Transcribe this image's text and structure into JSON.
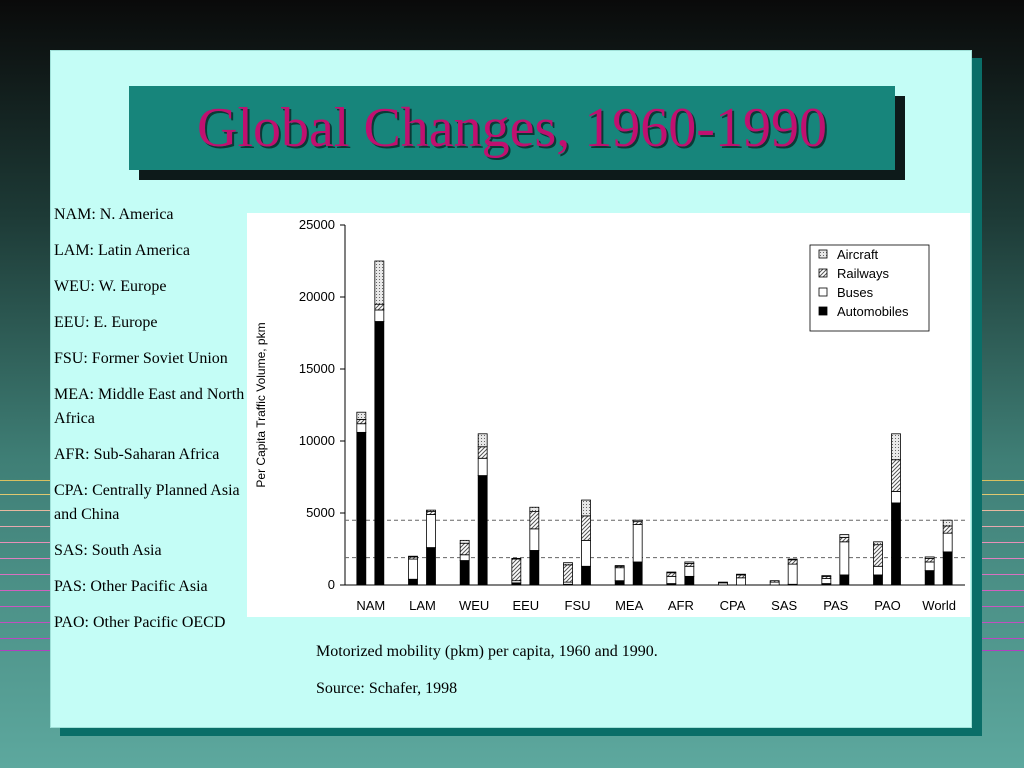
{
  "slide": {
    "title": "Global Changes, 1960-1990"
  },
  "region_legend": [
    "NAM: N. America",
    "LAM: Latin America",
    "WEU: W. Europe",
    "EEU: E. Europe",
    "FSU: Former Soviet Union",
    "MEA: Middle East and North Africa",
    "AFR: Sub-Saharan Africa",
    "CPA: Centrally Planned Asia and China",
    "SAS: South Asia",
    "PAS: Other Pacific Asia",
    "PAO: Other Pacific OECD"
  ],
  "caption": {
    "line1": "Motorized mobility (pkm) per capita, 1960 and 1990.",
    "line2": "Source:  Schafer, 1998"
  },
  "colors": {
    "accent_title_bg": "#17857b",
    "title_text": "#c01070",
    "slide_bg": "#c4fdf6"
  },
  "chart_data": {
    "type": "bar",
    "stacked": true,
    "ylabel": "Per Capita Traffic Volume, pkm",
    "ylim": [
      0,
      25000
    ],
    "yticks": [
      0,
      5000,
      10000,
      15000,
      20000,
      25000
    ],
    "reference_lines": [
      1900,
      4500
    ],
    "categories": [
      "NAM",
      "LAM",
      "WEU",
      "EEU",
      "FSU",
      "MEA",
      "AFR",
      "CPA",
      "SAS",
      "PAS",
      "PAO",
      "World"
    ],
    "years": [
      "1960",
      "1990"
    ],
    "series": [
      {
        "name": "Automobiles",
        "values": {
          "1960": [
            10600,
            400,
            1700,
            150,
            50,
            300,
            100,
            0,
            0,
            100,
            700,
            1000
          ],
          "1990": [
            18300,
            2600,
            7600,
            2400,
            1300,
            1600,
            600,
            0,
            50,
            700,
            5700,
            2300
          ]
        }
      },
      {
        "name": "Buses",
        "values": {
          "1960": [
            600,
            1400,
            400,
            150,
            150,
            900,
            500,
            150,
            200,
            350,
            600,
            600
          ],
          "1990": [
            800,
            2300,
            1200,
            1500,
            1800,
            2600,
            700,
            500,
            1400,
            2300,
            800,
            1300
          ]
        }
      },
      {
        "name": "Railways",
        "values": {
          "1960": [
            300,
            150,
            800,
            1500,
            1200,
            100,
            250,
            50,
            100,
            150,
            1500,
            250
          ],
          "1990": [
            400,
            200,
            800,
            1200,
            1700,
            200,
            200,
            200,
            300,
            300,
            2200,
            500
          ]
        }
      },
      {
        "name": "Aircraft",
        "values": {
          "1960": [
            500,
            50,
            200,
            50,
            150,
            50,
            50,
            0,
            0,
            50,
            200,
            100
          ],
          "1990": [
            3000,
            100,
            900,
            300,
            1100,
            100,
            100,
            50,
            50,
            200,
            1800,
            400
          ]
        }
      }
    ],
    "legend_position": "top-right"
  }
}
